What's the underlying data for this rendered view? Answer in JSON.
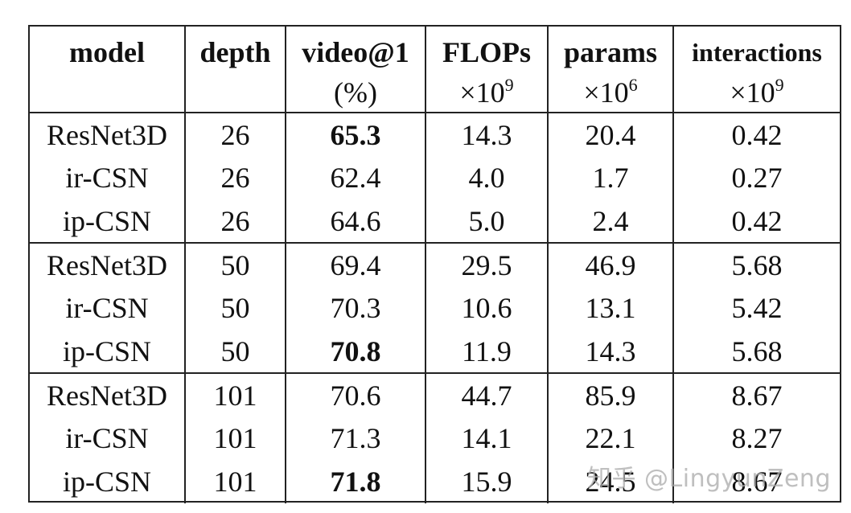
{
  "header": {
    "row1": [
      "model",
      "depth",
      "video@1",
      "FLOPs",
      "params",
      "interactions"
    ],
    "row2": {
      "video_unit": "(%)",
      "flops_unit_base": "×10",
      "flops_unit_exp": "9",
      "params_unit_base": "×10",
      "params_unit_exp": "6",
      "interactions_unit_base": "×10",
      "interactions_unit_exp": "9"
    }
  },
  "groups": [
    {
      "rows": [
        {
          "model": "ResNet3D",
          "depth": "26",
          "video": "65.3",
          "flops": "14.3",
          "params": "20.4",
          "interactions": "0.42",
          "bold": true
        },
        {
          "model": "ir-CSN",
          "depth": "26",
          "video": "62.4",
          "flops": "4.0",
          "params": "1.7",
          "interactions": "0.27",
          "bold": false
        },
        {
          "model": "ip-CSN",
          "depth": "26",
          "video": "64.6",
          "flops": "5.0",
          "params": "2.4",
          "interactions": "0.42",
          "bold": false
        }
      ]
    },
    {
      "rows": [
        {
          "model": "ResNet3D",
          "depth": "50",
          "video": "69.4",
          "flops": "29.5",
          "params": "46.9",
          "interactions": "5.68",
          "bold": false
        },
        {
          "model": "ir-CSN",
          "depth": "50",
          "video": "70.3",
          "flops": "10.6",
          "params": "13.1",
          "interactions": "5.42",
          "bold": false
        },
        {
          "model": "ip-CSN",
          "depth": "50",
          "video": "70.8",
          "flops": "11.9",
          "params": "14.3",
          "interactions": "5.68",
          "bold": true
        }
      ]
    },
    {
      "rows": [
        {
          "model": "ResNet3D",
          "depth": "101",
          "video": "70.6",
          "flops": "44.7",
          "params": "85.9",
          "interactions": "8.67",
          "bold": false
        },
        {
          "model": "ir-CSN",
          "depth": "101",
          "video": "71.3",
          "flops": "14.1",
          "params": "22.1",
          "interactions": "8.27",
          "bold": false
        },
        {
          "model": "ip-CSN",
          "depth": "101",
          "video": "71.8",
          "flops": "15.9",
          "params": "24.5",
          "interactions": "8.67",
          "bold": true
        }
      ]
    }
  ],
  "watermark": "知乎 @LingyunZeng"
}
